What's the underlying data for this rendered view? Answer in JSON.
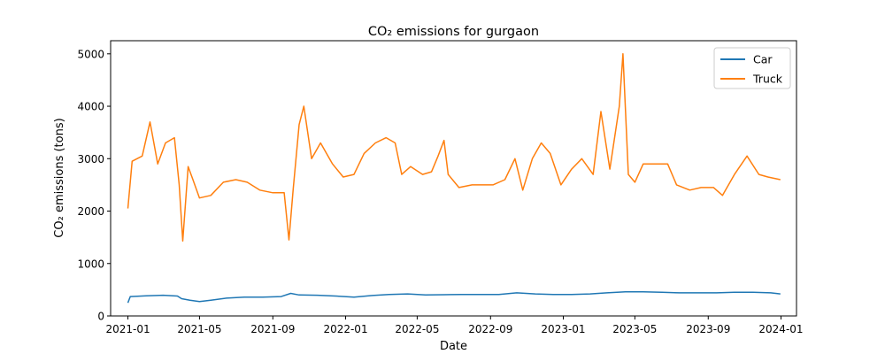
{
  "chart_data": {
    "type": "line",
    "title": "CO₂ emissions for gurgaon",
    "xlabel": "Date",
    "ylabel": "CO₂ emissions (tons)",
    "xlim": [
      "2020-12-03",
      "2024-01-27"
    ],
    "ylim": [
      0,
      5250
    ],
    "x_ticks": [
      "2021-01",
      "2021-05",
      "2021-09",
      "2022-01",
      "2022-05",
      "2022-09",
      "2023-01",
      "2023-05",
      "2023-09",
      "2024-01"
    ],
    "y_ticks": [
      0,
      1000,
      2000,
      3000,
      4000,
      5000
    ],
    "legend": {
      "position": "top-right",
      "entries": [
        "Car",
        "Truck"
      ]
    },
    "grid": false,
    "series": [
      {
        "name": "Car",
        "color": "#1f77b4",
        "points": [
          [
            "2021-01-01",
            250
          ],
          [
            "2021-01-05",
            370
          ],
          [
            "2021-02-01",
            385
          ],
          [
            "2021-03-01",
            395
          ],
          [
            "2021-03-25",
            380
          ],
          [
            "2021-04-01",
            330
          ],
          [
            "2021-04-15",
            300
          ],
          [
            "2021-05-01",
            275
          ],
          [
            "2021-05-20",
            300
          ],
          [
            "2021-06-15",
            340
          ],
          [
            "2021-07-15",
            360
          ],
          [
            "2021-08-15",
            360
          ],
          [
            "2021-09-15",
            370
          ],
          [
            "2021-10-01",
            430
          ],
          [
            "2021-10-15",
            400
          ],
          [
            "2021-11-15",
            395
          ],
          [
            "2021-12-15",
            380
          ],
          [
            "2022-01-15",
            360
          ],
          [
            "2022-02-15",
            390
          ],
          [
            "2022-03-15",
            410
          ],
          [
            "2022-04-15",
            420
          ],
          [
            "2022-05-15",
            400
          ],
          [
            "2022-06-15",
            405
          ],
          [
            "2022-07-15",
            410
          ],
          [
            "2022-08-15",
            410
          ],
          [
            "2022-09-15",
            410
          ],
          [
            "2022-10-15",
            440
          ],
          [
            "2022-11-15",
            420
          ],
          [
            "2022-12-15",
            410
          ],
          [
            "2023-01-15",
            410
          ],
          [
            "2023-02-15",
            420
          ],
          [
            "2023-03-15",
            440
          ],
          [
            "2023-04-15",
            460
          ],
          [
            "2023-05-15",
            460
          ],
          [
            "2023-06-15",
            450
          ],
          [
            "2023-07-15",
            440
          ],
          [
            "2023-08-15",
            440
          ],
          [
            "2023-09-15",
            440
          ],
          [
            "2023-10-15",
            450
          ],
          [
            "2023-11-15",
            450
          ],
          [
            "2023-12-15",
            440
          ],
          [
            "2023-12-31",
            420
          ]
        ]
      },
      {
        "name": "Truck",
        "color": "#ff7f0e",
        "points": [
          [
            "2021-01-01",
            2050
          ],
          [
            "2021-01-08",
            2950
          ],
          [
            "2021-01-25",
            3050
          ],
          [
            "2021-02-07",
            3700
          ],
          [
            "2021-02-20",
            2900
          ],
          [
            "2021-03-05",
            3300
          ],
          [
            "2021-03-20",
            3400
          ],
          [
            "2021-03-28",
            2500
          ],
          [
            "2021-04-03",
            1430
          ],
          [
            "2021-04-12",
            2850
          ],
          [
            "2021-04-20",
            2600
          ],
          [
            "2021-05-01",
            2250
          ],
          [
            "2021-05-20",
            2300
          ],
          [
            "2021-06-10",
            2550
          ],
          [
            "2021-07-01",
            2600
          ],
          [
            "2021-07-20",
            2550
          ],
          [
            "2021-08-10",
            2400
          ],
          [
            "2021-09-01",
            2350
          ],
          [
            "2021-09-20",
            2350
          ],
          [
            "2021-09-28",
            1450
          ],
          [
            "2021-10-05",
            2400
          ],
          [
            "2021-10-15",
            3650
          ],
          [
            "2021-10-23",
            4000
          ],
          [
            "2021-11-05",
            3000
          ],
          [
            "2021-11-20",
            3300
          ],
          [
            "2021-12-10",
            2900
          ],
          [
            "2021-12-28",
            2650
          ],
          [
            "2022-01-15",
            2700
          ],
          [
            "2022-02-01",
            3100
          ],
          [
            "2022-02-20",
            3300
          ],
          [
            "2022-03-10",
            3400
          ],
          [
            "2022-03-25",
            3300
          ],
          [
            "2022-04-05",
            2700
          ],
          [
            "2022-04-20",
            2850
          ],
          [
            "2022-05-10",
            2700
          ],
          [
            "2022-05-25",
            2750
          ],
          [
            "2022-06-05",
            3050
          ],
          [
            "2022-06-15",
            3350
          ],
          [
            "2022-06-22",
            2700
          ],
          [
            "2022-07-10",
            2450
          ],
          [
            "2022-08-01",
            2500
          ],
          [
            "2022-08-20",
            2500
          ],
          [
            "2022-09-05",
            2500
          ],
          [
            "2022-09-25",
            2600
          ],
          [
            "2022-10-12",
            3000
          ],
          [
            "2022-10-25",
            2400
          ],
          [
            "2022-11-10",
            3000
          ],
          [
            "2022-11-25",
            3300
          ],
          [
            "2022-12-10",
            3100
          ],
          [
            "2022-12-28",
            2500
          ],
          [
            "2023-01-15",
            2800
          ],
          [
            "2023-02-01",
            3000
          ],
          [
            "2023-02-20",
            2700
          ],
          [
            "2023-03-05",
            3900
          ],
          [
            "2023-03-20",
            2800
          ],
          [
            "2023-04-05",
            4000
          ],
          [
            "2023-04-11",
            5000
          ],
          [
            "2023-04-20",
            2700
          ],
          [
            "2023-05-01",
            2550
          ],
          [
            "2023-05-15",
            2900
          ],
          [
            "2023-06-05",
            2900
          ],
          [
            "2023-06-25",
            2900
          ],
          [
            "2023-07-10",
            2500
          ],
          [
            "2023-08-01",
            2400
          ],
          [
            "2023-08-20",
            2450
          ],
          [
            "2023-09-10",
            2450
          ],
          [
            "2023-09-25",
            2300
          ],
          [
            "2023-10-15",
            2700
          ],
          [
            "2023-11-05",
            3050
          ],
          [
            "2023-11-25",
            2700
          ],
          [
            "2023-12-10",
            2650
          ],
          [
            "2023-12-31",
            2600
          ]
        ]
      }
    ]
  }
}
